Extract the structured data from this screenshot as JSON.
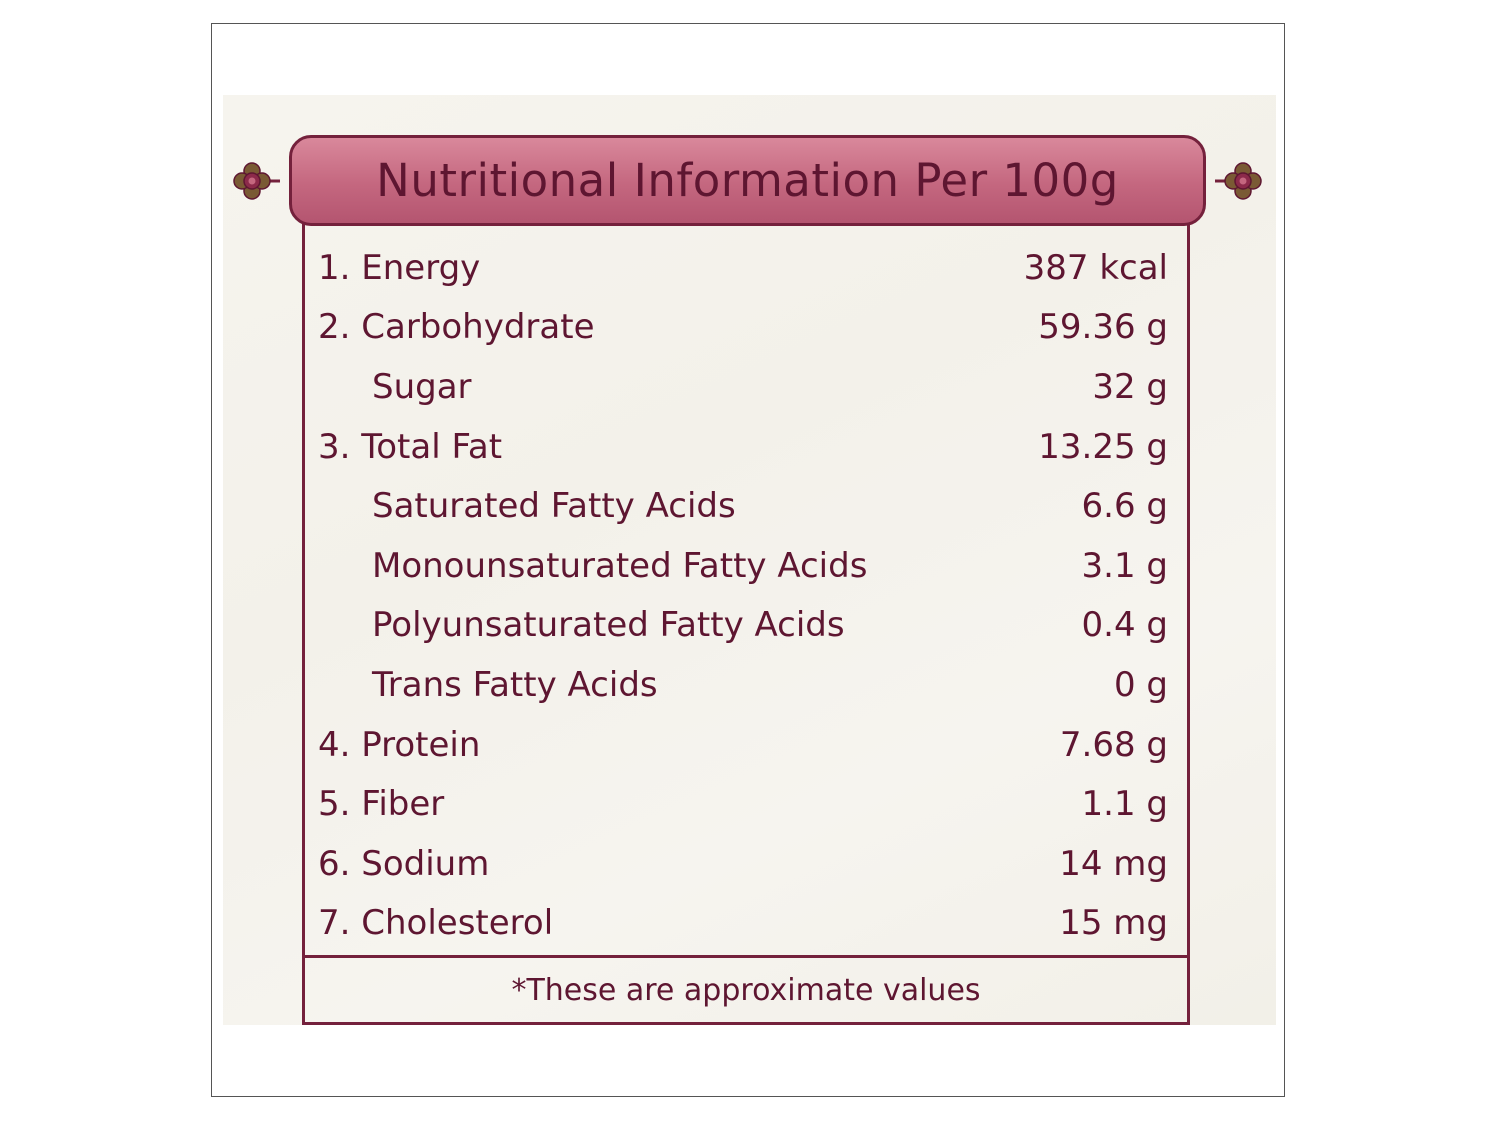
{
  "title": "Nutritional Information Per 100g",
  "rows": [
    {
      "label": "1. Energy",
      "value": "387 kcal",
      "sub": false
    },
    {
      "label": "2. Carbohydrate",
      "value": "59.36 g",
      "sub": false
    },
    {
      "label": "Sugar",
      "value": "32 g",
      "sub": true
    },
    {
      "label": "3. Total Fat",
      "value": "13.25 g",
      "sub": false
    },
    {
      "label": "Saturated Fatty Acids",
      "value": "6.6 g",
      "sub": true
    },
    {
      "label": "Monounsaturated Fatty Acids",
      "value": "3.1 g",
      "sub": true
    },
    {
      "label": "Polyunsaturated Fatty Acids",
      "value": "0.4 g",
      "sub": true
    },
    {
      "label": "Trans Fatty Acids",
      "value": "0 g",
      "sub": true
    },
    {
      "label": "4. Protein",
      "value": "7.68 g",
      "sub": false
    },
    {
      "label": "5. Fiber",
      "value": "1.1 g",
      "sub": false
    },
    {
      "label": "6. Sodium",
      "value": "14 mg",
      "sub": false
    },
    {
      "label": "7. Cholesterol",
      "value": "15 mg",
      "sub": false
    }
  ],
  "footnote": "*These are approximate values",
  "colors": {
    "text": "#5e1631",
    "border": "#74213c",
    "banner": "#c4677f",
    "ornament": "#6b4a2c"
  }
}
